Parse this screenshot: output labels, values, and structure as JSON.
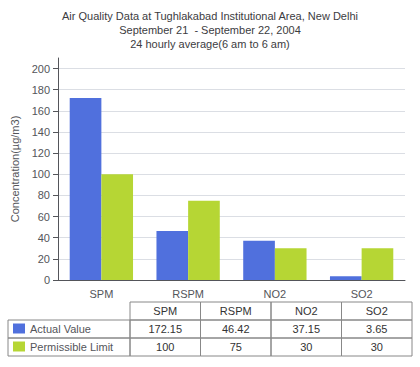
{
  "chart_data": {
    "type": "bar",
    "title": "Air Quality Data at Tughlakabad Institutional Area, New Delhi\nSeptember 21  - September 22, 2004\n24 hourly average(6 am to 6 am)",
    "categories": [
      "SPM",
      "RSPM",
      "NO2",
      "SO2"
    ],
    "series": [
      {
        "name": "Actual Value",
        "values": [
          172.15,
          46.42,
          37.15,
          3.65
        ]
      },
      {
        "name": "Permissible Limit",
        "values": [
          100,
          75,
          30,
          30
        ]
      }
    ],
    "ylabel": "Concentration(µg/m3)",
    "ylim": [
      0,
      210
    ],
    "yticks": [
      0,
      20,
      40,
      60,
      80,
      100,
      120,
      140,
      160,
      180,
      200
    ],
    "grid": true,
    "legend": "lower left"
  }
}
